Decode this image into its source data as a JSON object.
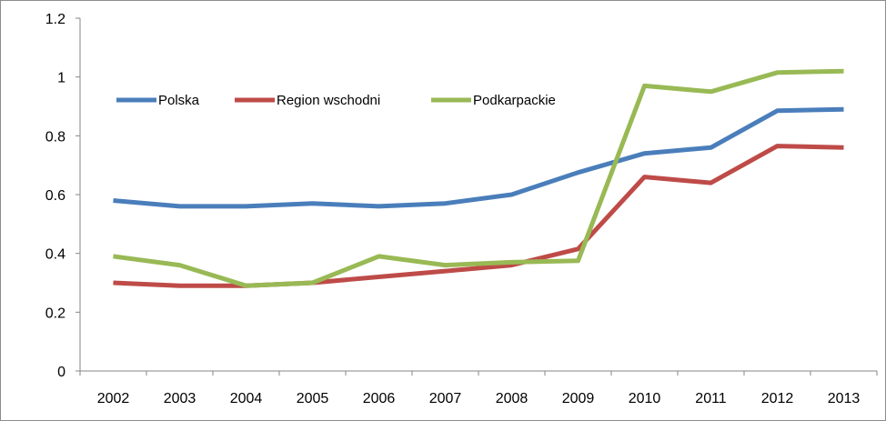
{
  "chart_data": {
    "type": "line",
    "title": "",
    "xlabel": "",
    "ylabel": "",
    "x": [
      "2002",
      "2003",
      "2004",
      "2005",
      "2006",
      "2007",
      "2008",
      "2009",
      "2010",
      "2011",
      "2012",
      "2013"
    ],
    "yticks": [
      "0",
      "0.2",
      "0.4",
      "0.6",
      "0.8",
      "1",
      "1.2"
    ],
    "ylim": [
      0,
      1.2
    ],
    "grid": false,
    "legend_position": "top-left",
    "series": [
      {
        "name": "Polska",
        "color": "#4a7ebb",
        "values": [
          0.58,
          0.56,
          0.56,
          0.57,
          0.56,
          0.57,
          0.6,
          0.675,
          0.74,
          0.76,
          0.885,
          0.89
        ]
      },
      {
        "name": "Region wschodni",
        "color": "#be4b48",
        "values": [
          0.3,
          0.29,
          0.29,
          0.3,
          0.32,
          0.34,
          0.36,
          0.415,
          0.66,
          0.64,
          0.765,
          0.76
        ]
      },
      {
        "name": "Podkarpackie",
        "color": "#98b954",
        "values": [
          0.39,
          0.36,
          0.29,
          0.3,
          0.39,
          0.36,
          0.37,
          0.375,
          0.97,
          0.95,
          1.015,
          1.02
        ]
      }
    ]
  }
}
